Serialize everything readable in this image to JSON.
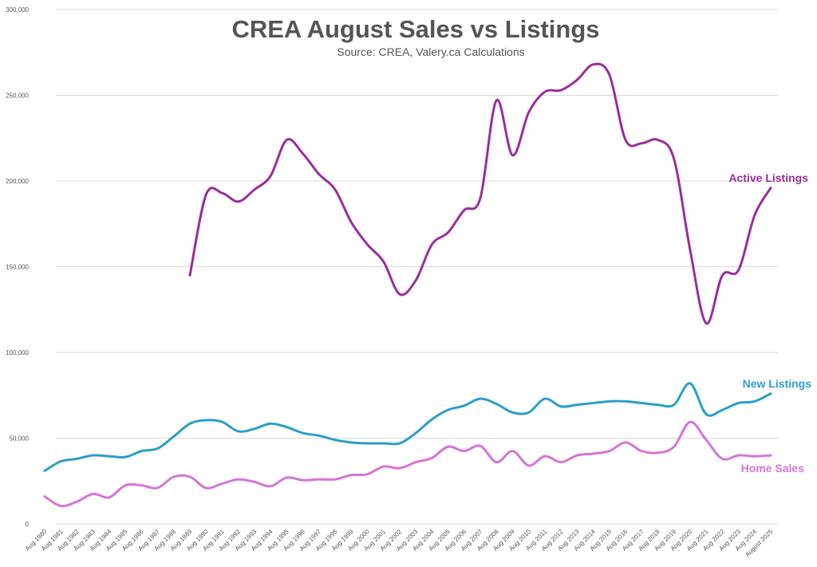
{
  "chart_data": {
    "type": "line",
    "title": "CREA August Sales vs Listings",
    "subtitle": "Source: CREA, Valery.ca Calculations",
    "xlabel": "",
    "ylabel": "",
    "ylim": [
      0,
      300000
    ],
    "y_ticks": [
      0,
      50000,
      100000,
      150000,
      200000,
      250000,
      300000
    ],
    "y_tick_labels": [
      "0",
      "50,000",
      "100,000",
      "150,000",
      "200,000",
      "250,000",
      "300,000"
    ],
    "grid": true,
    "legend": "inline labels at right end of each series",
    "categories": [
      "Aug 1980",
      "Aug 1981",
      "Aug 1982",
      "Aug 1983",
      "Aug 1984",
      "Aug 1985",
      "Aug 1986",
      "Aug 1987",
      "Aug 1988",
      "Aug 1989",
      "Aug 1990",
      "Aug 1991",
      "Aug 1992",
      "Aug 1993",
      "Aug 1994",
      "Aug 1995",
      "Aug 1996",
      "Aug 1997",
      "Aug 1998",
      "Aug 1999",
      "Aug 2000",
      "Aug 2001",
      "Aug 2002",
      "Aug 2003",
      "Aug 2004",
      "Aug 2005",
      "Aug 2006",
      "Aug 2007",
      "Aug 2008",
      "Aug 2009",
      "Aug 2010",
      "Aug 2011",
      "Aug 2012",
      "Aug 2013",
      "Aug 2014",
      "Aug 2015",
      "Aug 2016",
      "Aug 2017",
      "Aug 2018",
      "Aug 2019",
      "Aug 2020",
      "Aug 2021",
      "Aug 2022",
      "Aug 2023",
      "Aug 2024",
      "August 2025"
    ],
    "series": [
      {
        "name": "Active Listings",
        "color": "#9b2d9b",
        "values": [
          null,
          null,
          null,
          null,
          null,
          null,
          null,
          null,
          null,
          145000,
          192000,
          193000,
          188000,
          195000,
          203000,
          224000,
          216000,
          204000,
          195000,
          176000,
          163000,
          153000,
          134000,
          142000,
          163000,
          170000,
          183000,
          190000,
          247000,
          215000,
          240000,
          252000,
          253000,
          259000,
          268000,
          262000,
          224000,
          222000,
          224000,
          213000,
          160000,
          117000,
          145000,
          148000,
          180000,
          196000
        ]
      },
      {
        "name": "New Listings",
        "color": "#2a9fc9",
        "values": [
          31000,
          36500,
          38000,
          40000,
          39500,
          39000,
          42500,
          44000,
          51000,
          58500,
          60500,
          59500,
          54000,
          55500,
          58500,
          56500,
          53000,
          51500,
          49000,
          47500,
          47000,
          47000,
          47000,
          53000,
          61000,
          66500,
          69000,
          73000,
          70000,
          65000,
          65000,
          73000,
          68500,
          69500,
          70500,
          71500,
          71500,
          70500,
          69500,
          69500,
          82000,
          64000,
          66500,
          70500,
          71500,
          76000
        ]
      },
      {
        "name": "Home Sales",
        "color": "#d674d6",
        "values": [
          16000,
          10500,
          13000,
          17500,
          15500,
          22500,
          22500,
          21000,
          27500,
          27500,
          21000,
          23500,
          26000,
          24500,
          22000,
          27000,
          25500,
          26000,
          26000,
          28500,
          29000,
          33500,
          32500,
          36000,
          38500,
          45000,
          42500,
          45500,
          36000,
          42500,
          34000,
          39500,
          36000,
          40000,
          41000,
          42500,
          47500,
          42500,
          41500,
          45000,
          59500,
          49000,
          38000,
          40000,
          39500,
          40000
        ]
      }
    ]
  }
}
